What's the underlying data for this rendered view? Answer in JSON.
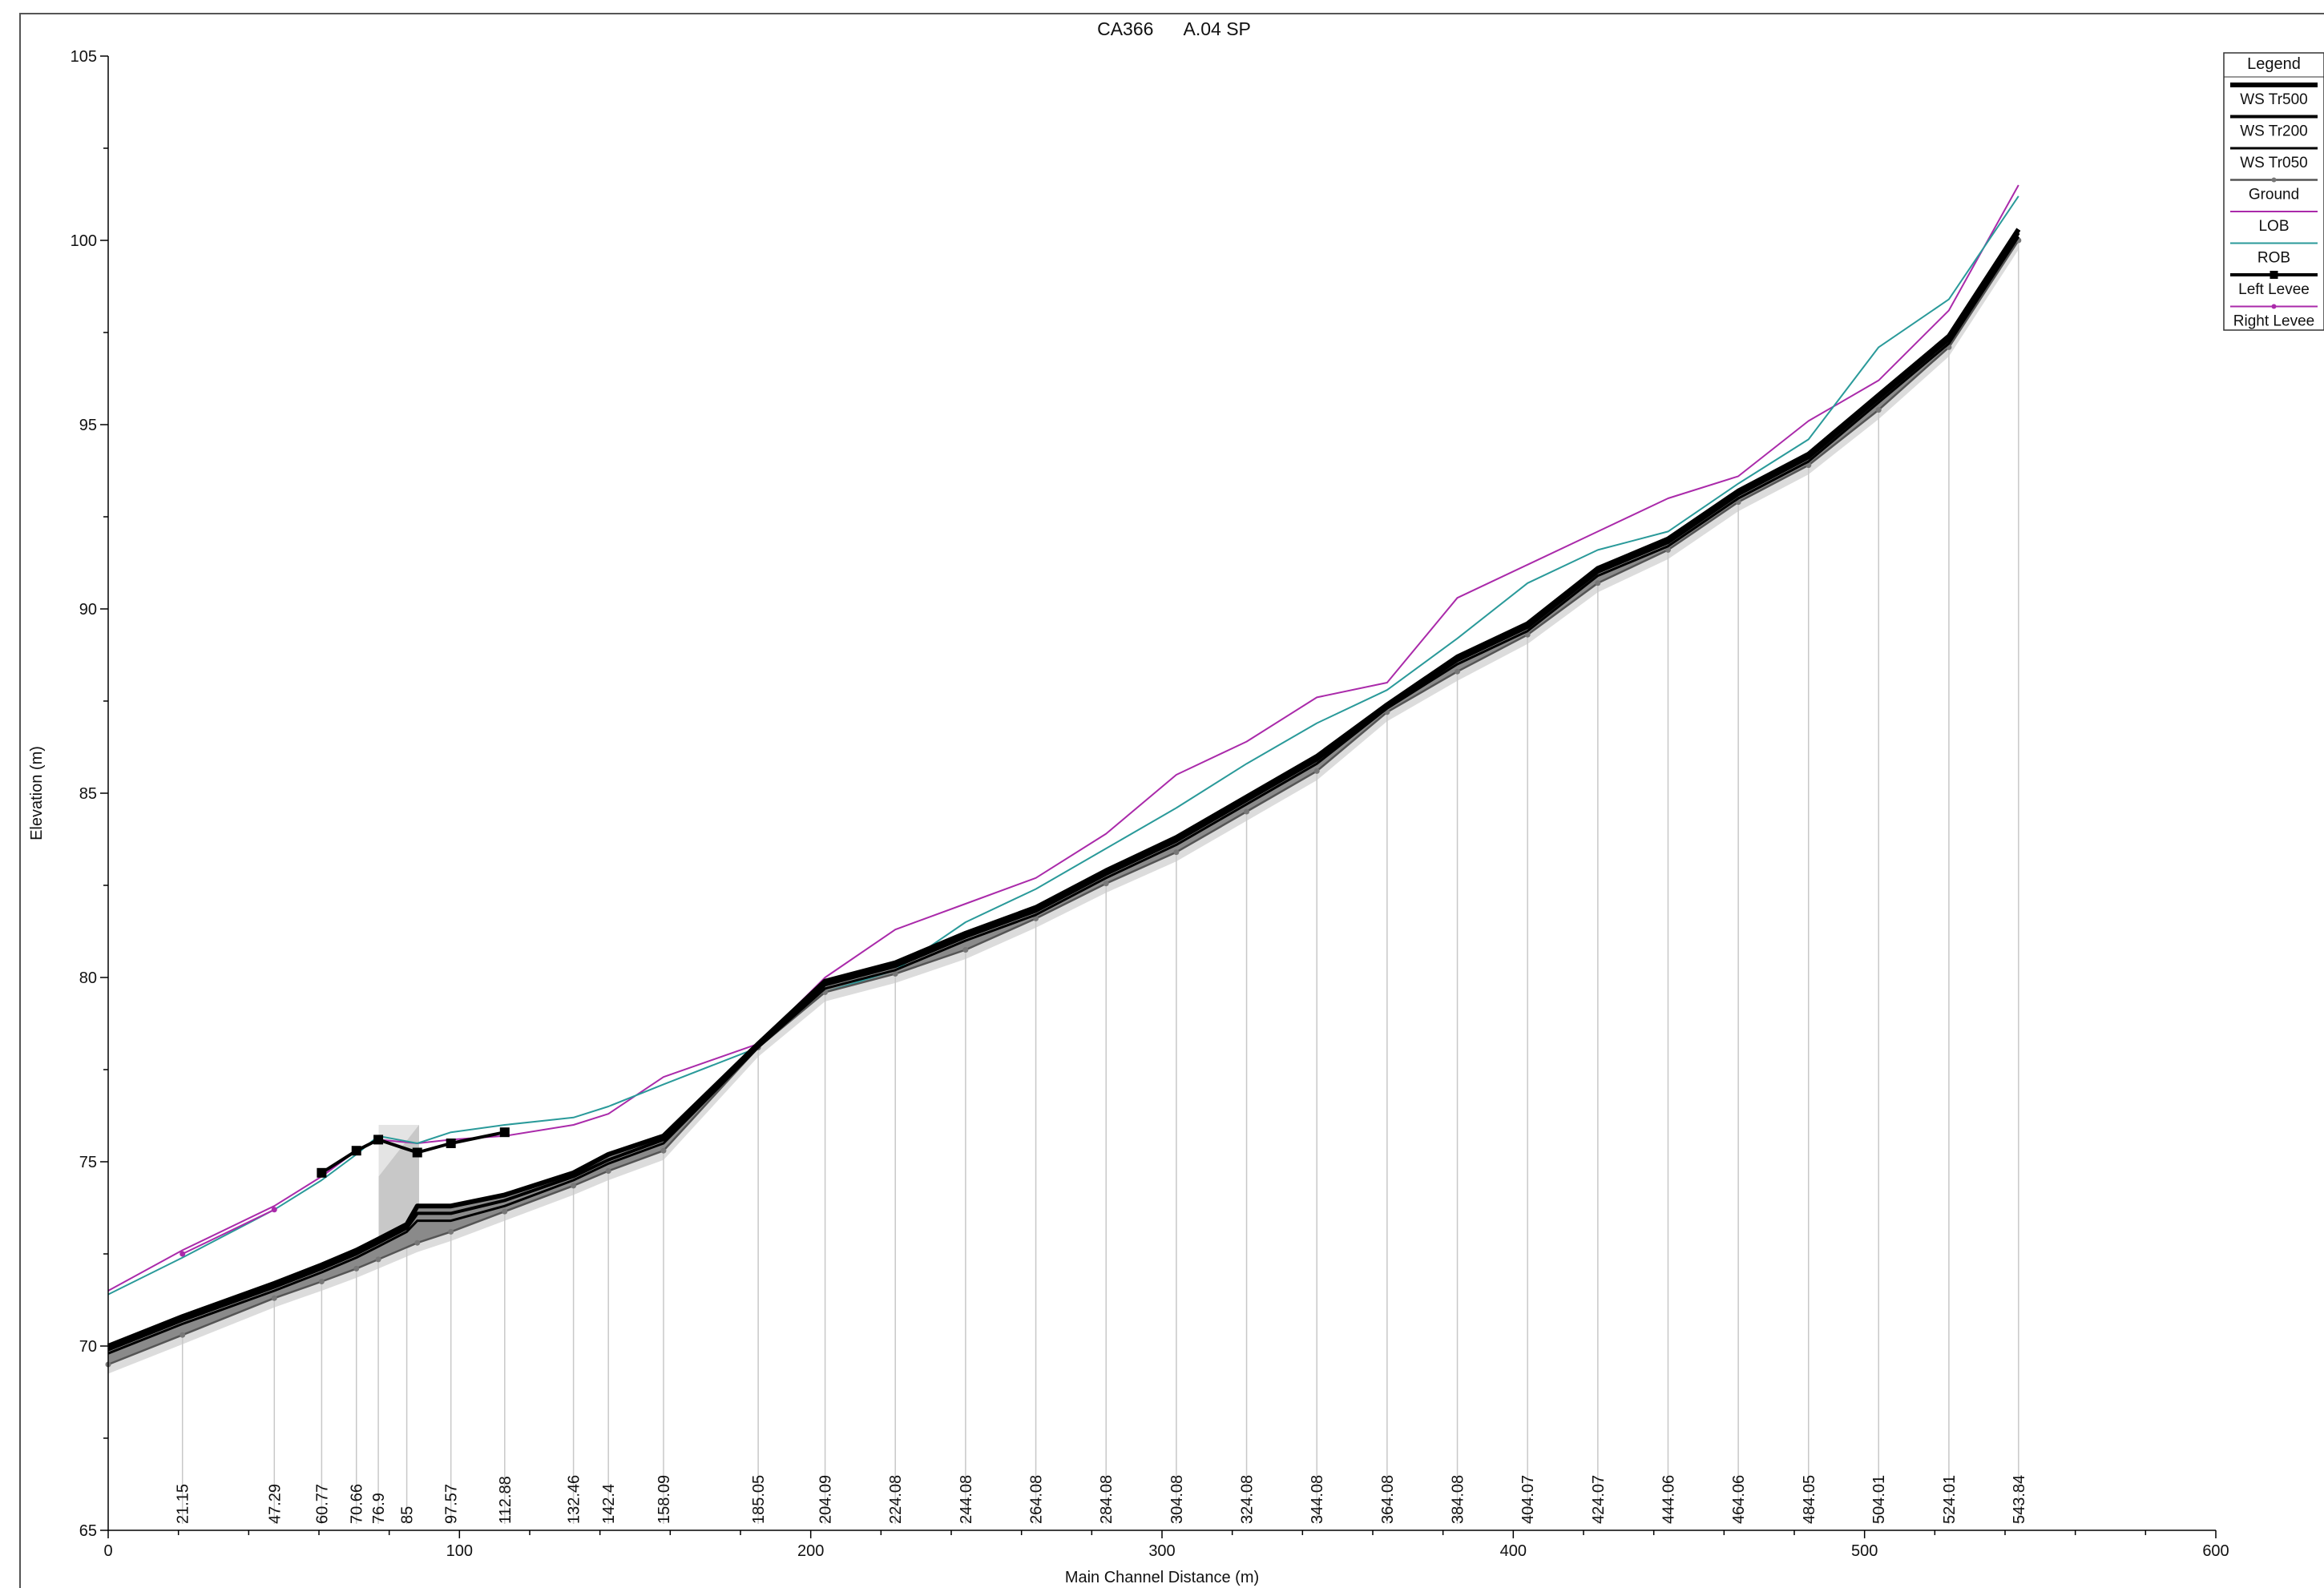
{
  "chart_data": {
    "type": "line",
    "title": "CA366      A.04 SP",
    "xlabel": "Main Channel Distance (m)",
    "ylabel": "Elevation (m)",
    "xlim": [
      0,
      600
    ],
    "ylim": [
      65,
      105
    ],
    "x_ticks": [
      0,
      100,
      200,
      300,
      400,
      500,
      600
    ],
    "y_ticks": [
      65,
      70,
      75,
      80,
      85,
      90,
      95,
      100,
      105
    ],
    "grid": false,
    "legend_position": "top-right",
    "legend_title": "Legend",
    "legend": [
      "WS  Tr500",
      "WS  Tr200",
      "WS  Tr050",
      "Ground",
      "LOB",
      "ROB",
      "Left Levee",
      "Right Levee"
    ],
    "stations": [
      21.15,
      47.29,
      60.77,
      70.66,
      76.9,
      85,
      97.57,
      112.88,
      132.46,
      142.4,
      158.09,
      185.05,
      204.09,
      224.08,
      244.08,
      264.08,
      284.08,
      304.08,
      324.08,
      344.08,
      364.08,
      384.08,
      404.07,
      424.07,
      444.06,
      464.06,
      484.05,
      504.01,
      524.01,
      543.84
    ],
    "structure": {
      "x_start": 77,
      "x_end": 88.5,
      "top": 76.0,
      "bottom": 72.8
    },
    "series": [
      {
        "name": "WS  Tr500",
        "color": "#000000",
        "x": [
          0,
          21.15,
          47.29,
          60.77,
          70.66,
          76.9,
          85,
          88,
          97.57,
          112.88,
          132.46,
          142.4,
          158.09,
          185.05,
          204.09,
          224.08,
          244.08,
          264.08,
          284.08,
          304.08,
          324.08,
          344.08,
          364.08,
          384.08,
          404.07,
          424.07,
          444.06,
          464.06,
          484.05,
          504.01,
          524.01,
          543.84
        ],
        "y": [
          70.0,
          70.8,
          71.7,
          72.2,
          72.6,
          72.9,
          73.3,
          73.8,
          73.8,
          74.1,
          74.7,
          75.2,
          75.7,
          78.2,
          79.9,
          80.4,
          81.2,
          81.9,
          82.9,
          83.8,
          84.9,
          86.0,
          87.4,
          88.7,
          89.6,
          91.1,
          91.9,
          93.2,
          94.2,
          95.8,
          97.4,
          100.3
        ]
      },
      {
        "name": "WS  Tr200",
        "color": "#000000",
        "x": [
          0,
          21.15,
          47.29,
          60.77,
          70.66,
          76.9,
          85,
          88,
          97.57,
          112.88,
          132.46,
          142.4,
          158.09,
          185.05,
          204.09,
          224.08,
          244.08,
          264.08,
          284.08,
          304.08,
          324.08,
          344.08,
          364.08,
          384.08,
          404.07,
          424.07,
          444.06,
          464.06,
          484.05,
          504.01,
          524.01,
          543.84
        ],
        "y": [
          69.9,
          70.7,
          71.6,
          72.1,
          72.5,
          72.8,
          73.2,
          73.6,
          73.6,
          73.95,
          74.6,
          75.05,
          75.6,
          78.15,
          79.8,
          80.3,
          81.1,
          81.8,
          82.8,
          83.7,
          84.8,
          85.9,
          87.35,
          88.6,
          89.5,
          91.0,
          91.8,
          93.1,
          94.1,
          95.7,
          97.3,
          100.2
        ]
      },
      {
        "name": "WS  Tr050",
        "color": "#000000",
        "x": [
          0,
          21.15,
          47.29,
          60.77,
          70.66,
          76.9,
          85,
          88,
          97.57,
          112.88,
          132.46,
          142.4,
          158.09,
          185.05,
          204.09,
          224.08,
          244.08,
          264.08,
          284.08,
          304.08,
          324.08,
          344.08,
          364.08,
          384.08,
          404.07,
          424.07,
          444.06,
          464.06,
          484.05,
          504.01,
          524.01,
          543.84
        ],
        "y": [
          69.8,
          70.6,
          71.5,
          72.0,
          72.4,
          72.7,
          73.1,
          73.4,
          73.4,
          73.8,
          74.5,
          74.95,
          75.5,
          78.1,
          79.7,
          80.2,
          81.0,
          81.7,
          82.7,
          83.6,
          84.7,
          85.8,
          87.3,
          88.5,
          89.4,
          90.9,
          91.7,
          93.0,
          94.0,
          95.6,
          97.2,
          100.1
        ]
      },
      {
        "name": "Ground",
        "color": "#555555",
        "x": [
          0,
          21.15,
          47.29,
          60.77,
          70.66,
          76.9,
          88,
          97.57,
          112.88,
          132.46,
          142.4,
          158.09,
          185.05,
          204.09,
          224.08,
          244.08,
          264.08,
          284.08,
          304.08,
          324.08,
          344.08,
          364.08,
          384.08,
          404.07,
          424.07,
          444.06,
          464.06,
          484.05,
          504.01,
          524.01,
          543.84
        ],
        "y": [
          69.5,
          70.3,
          71.3,
          71.75,
          72.1,
          72.35,
          72.8,
          73.1,
          73.65,
          74.35,
          74.75,
          75.3,
          78.1,
          79.6,
          80.1,
          80.75,
          81.6,
          82.55,
          83.4,
          84.5,
          85.6,
          87.2,
          88.3,
          89.3,
          90.7,
          91.6,
          92.9,
          93.9,
          95.4,
          97.1,
          100.0
        ]
      },
      {
        "name": "LOB",
        "color": "#aa2aaa",
        "x": [
          0,
          21.15,
          47.29,
          60.77,
          70.66,
          76.9,
          88,
          97.57,
          112.88,
          132.46,
          142.4,
          158.09,
          185.05,
          204.09,
          224.08,
          244.08,
          264.08,
          284.08,
          304.08,
          324.08,
          344.08,
          364.08,
          384.08,
          404.07,
          424.07,
          444.06,
          464.06,
          484.05,
          504.01,
          524.01,
          543.84
        ],
        "y": [
          71.5,
          72.6,
          73.8,
          74.6,
          75.3,
          75.6,
          75.5,
          75.6,
          75.7,
          76.0,
          76.3,
          77.3,
          78.2,
          80.0,
          81.3,
          82.0,
          82.7,
          83.9,
          85.5,
          86.4,
          87.6,
          88.0,
          90.3,
          91.2,
          92.1,
          93.0,
          93.6,
          95.1,
          96.2,
          98.1,
          101.5
        ]
      },
      {
        "name": "ROB",
        "color": "#2a9a9a",
        "x": [
          0,
          21.15,
          47.29,
          60.77,
          70.66,
          76.9,
          88,
          97.57,
          112.88,
          132.46,
          142.4,
          158.09,
          185.05,
          204.09,
          224.08,
          244.08,
          264.08,
          284.08,
          304.08,
          324.08,
          344.08,
          364.08,
          384.08,
          404.07,
          424.07,
          444.06,
          464.06,
          484.05,
          504.01,
          524.01,
          543.84
        ],
        "y": [
          71.4,
          72.4,
          73.7,
          74.5,
          75.2,
          75.7,
          75.5,
          75.8,
          76.0,
          76.2,
          76.5,
          77.1,
          78.1,
          79.6,
          80.2,
          81.5,
          82.4,
          83.5,
          84.6,
          85.8,
          86.9,
          87.8,
          89.2,
          90.7,
          91.6,
          92.1,
          93.4,
          94.6,
          97.1,
          98.4,
          101.2
        ]
      },
      {
        "name": "Left Levee",
        "color": "#000000",
        "x": [
          60.77,
          70.66,
          76.9,
          88,
          97.57,
          112.88
        ],
        "y": [
          74.7,
          75.3,
          75.6,
          75.25,
          75.5,
          75.8
        ]
      },
      {
        "name": "Right Levee",
        "color": "#aa2aaa",
        "x": [
          21.15,
          47.29
        ],
        "y": [
          72.5,
          73.7
        ]
      }
    ]
  }
}
